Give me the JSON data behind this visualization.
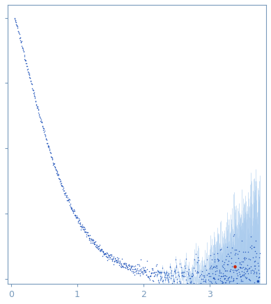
{
  "title": "",
  "xlabel": "",
  "ylabel": "",
  "xlim": [
    -0.05,
    3.85
  ],
  "ylim": [
    -0.02,
    1.05
  ],
  "background_color": "#ffffff",
  "dot_color": "#2255bb",
  "error_color": "#aaccee",
  "outlier_color": "#cc2200",
  "tick_color": "#7799bb",
  "spine_color": "#7799bb",
  "x_ticks": [
    0,
    1,
    2,
    3
  ],
  "y_ticks": [
    0.0,
    0.25,
    0.5,
    0.75,
    1.0
  ],
  "seed": 12345
}
